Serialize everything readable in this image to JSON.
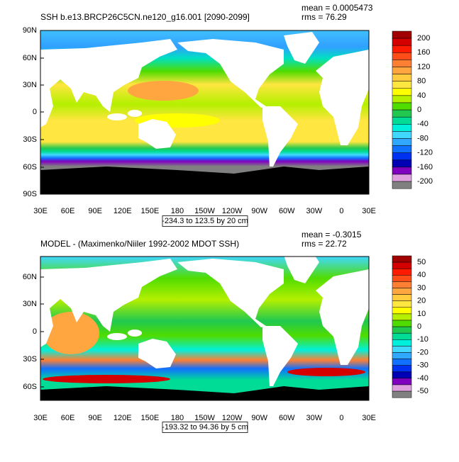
{
  "colorbar_colors": [
    "#a00000",
    "#d40000",
    "#ff1a00",
    "#ff4d1a",
    "#ff8033",
    "#ffa640",
    "#ffcc40",
    "#ffe640",
    "#ffff00",
    "#b4f000",
    "#50dc00",
    "#20c850",
    "#00dc96",
    "#00f0dc",
    "#40d8ff",
    "#30a8ff",
    "#1070ff",
    "#0030f0",
    "#0000b4",
    "#8000c0",
    "#e0a0e0",
    "#808080"
  ],
  "panels": [
    {
      "title": "SSH b.e13.BRCP26C5CN.ne120_g16.001 [2090-2099]",
      "mean": "mean = 0.0005473",
      "rms": "rms = 76.29",
      "lat_labels": [
        "90N",
        "60N",
        "30N",
        "0",
        "30S",
        "60S",
        "90S"
      ],
      "lon_labels": [
        "30E",
        "60E",
        "90E",
        "120E",
        "150E",
        "180",
        "150W",
        "120W",
        "90W",
        "60W",
        "30W",
        "0",
        "30E"
      ],
      "colorbar_labels": [
        200,
        160,
        120,
        80,
        40,
        0,
        -40,
        -80,
        -120,
        -160,
        -200
      ],
      "range_note": "-234.3 to 123.5 by 20 cm"
    },
    {
      "title": "MODEL - (Maximenko/Niiler 1992-2002 MDOT SSH)",
      "mean": "mean = -0.3015",
      "rms": "rms = 22.72",
      "lat_labels": [
        "60N",
        "30N",
        "0",
        "30S",
        "60S"
      ],
      "lon_labels": [
        "30E",
        "60E",
        "90E",
        "120E",
        "150E",
        "180",
        "150W",
        "120W",
        "90W",
        "60W",
        "30W",
        "0",
        "30E"
      ],
      "colorbar_labels": [
        50,
        40,
        30,
        20,
        10,
        0,
        -10,
        -20,
        -30,
        -40,
        -50
      ],
      "range_note": "-193.32 to 94.36 by 5 cm"
    }
  ]
}
